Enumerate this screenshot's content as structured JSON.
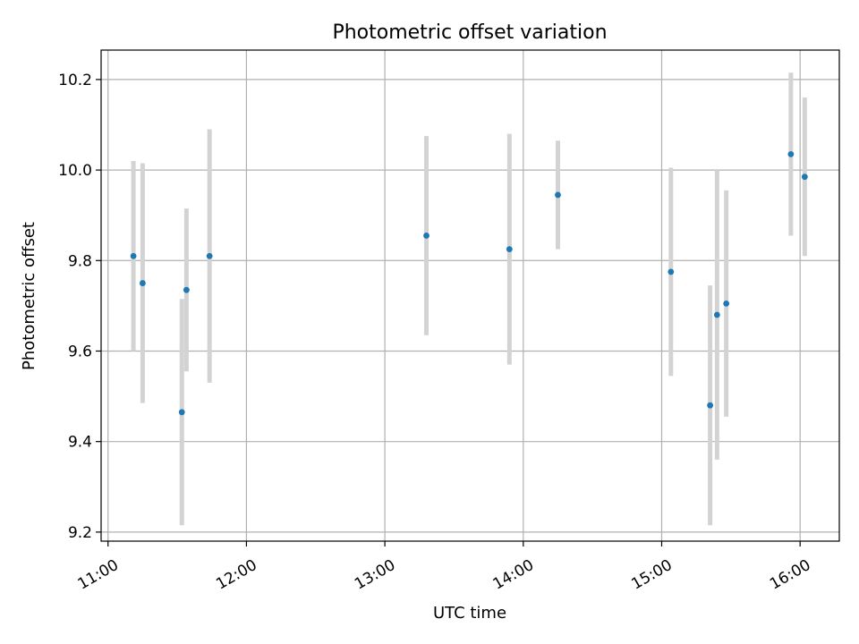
{
  "chart_data": {
    "type": "scatter",
    "title": "Photometric offset variation",
    "xlabel": "UTC time",
    "ylabel": "Photometric offset",
    "xlim": [
      "10:57",
      "16:17"
    ],
    "ylim": [
      9.18,
      10.265
    ],
    "x_ticks": [
      "11:00",
      "12:00",
      "13:00",
      "14:00",
      "15:00",
      "16:00"
    ],
    "y_ticks": [
      9.2,
      9.4,
      9.6,
      9.8,
      10.0,
      10.2
    ],
    "y_tick_labels": [
      "9.2",
      "9.4",
      "9.6",
      "9.8",
      "10.0",
      "10.2"
    ],
    "grid": true,
    "series": [
      {
        "marker_color": "#1f77b4",
        "errorbar_color": "#d3d3d3",
        "points": [
          {
            "x": "11:11",
            "y": 9.81,
            "err": 0.21
          },
          {
            "x": "11:15",
            "y": 9.75,
            "err": 0.265
          },
          {
            "x": "11:32",
            "y": 9.465,
            "err": 0.25
          },
          {
            "x": "11:34",
            "y": 9.735,
            "err": 0.18
          },
          {
            "x": "11:44",
            "y": 9.81,
            "err": 0.28
          },
          {
            "x": "13:18",
            "y": 9.855,
            "err": 0.22
          },
          {
            "x": "13:54",
            "y": 9.825,
            "err": 0.255
          },
          {
            "x": "14:15",
            "y": 9.945,
            "err": 0.12
          },
          {
            "x": "15:04",
            "y": 9.775,
            "err": 0.23
          },
          {
            "x": "15:21",
            "y": 9.48,
            "err": 0.265
          },
          {
            "x": "15:24",
            "y": 9.68,
            "err": 0.32
          },
          {
            "x": "15:28",
            "y": 9.705,
            "err": 0.25
          },
          {
            "x": "15:56",
            "y": 10.035,
            "err": 0.18
          },
          {
            "x": "16:02",
            "y": 9.985,
            "err": 0.175
          }
        ]
      }
    ]
  }
}
